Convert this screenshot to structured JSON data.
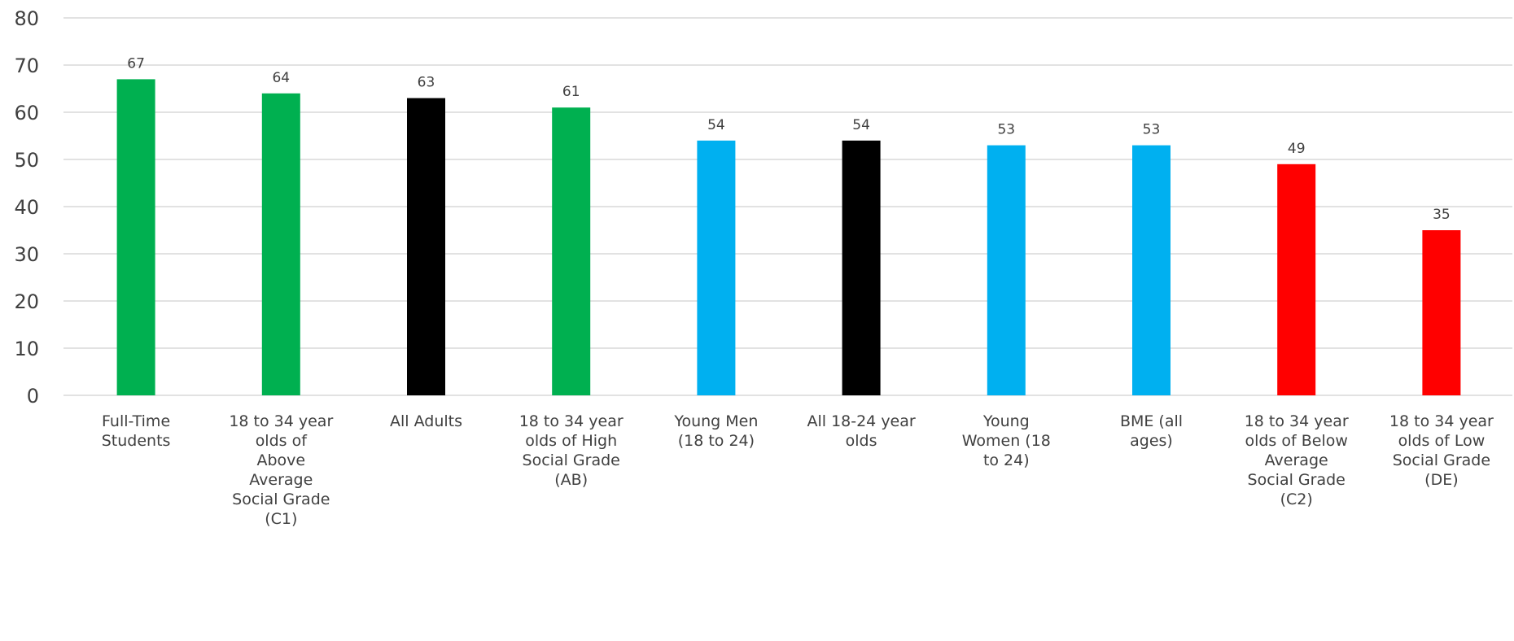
{
  "chart_data": {
    "type": "bar",
    "title": "",
    "xlabel": "",
    "ylabel": "",
    "ylim": [
      0,
      80
    ],
    "yticks": [
      0,
      10,
      20,
      30,
      40,
      50,
      60,
      70,
      80
    ],
    "grid": true,
    "legend": "none",
    "data_labels": true,
    "categories": [
      "Full-Time Students",
      "18 to 34 year olds of Above Average Social Grade (C1)",
      "All Adults",
      "18 to 34 year olds of High Social Grade (AB)",
      "Young Men (18 to 24)",
      "All 18-24 year olds",
      "Young Women (18 to 24)",
      "BME (all ages)",
      "18 to 34 year olds of Below Average Social Grade (C2)",
      "18 to 34 year olds of Low Social Grade (DE)"
    ],
    "category_label_lines": [
      [
        "Full-Time",
        "Students"
      ],
      [
        "18 to 34 year",
        "olds of",
        "Above",
        "Average",
        "Social Grade",
        "(C1)"
      ],
      [
        "All Adults"
      ],
      [
        "18 to 34 year",
        "olds of High",
        "Social Grade",
        "(AB)"
      ],
      [
        "Young Men",
        "(18 to 24)"
      ],
      [
        "All 18-24 year",
        "olds"
      ],
      [
        "Young",
        "Women (18",
        "to 24)"
      ],
      [
        "BME (all",
        "ages)"
      ],
      [
        "18 to 34 year",
        "olds of Below",
        "Average",
        "Social Grade",
        "(C2)"
      ],
      [
        "18 to 34 year",
        "olds of Low",
        "Social Grade",
        "(DE)"
      ]
    ],
    "values": [
      67,
      64,
      63,
      61,
      54,
      54,
      53,
      53,
      49,
      35
    ],
    "colors": [
      "#00b050",
      "#00b050",
      "#000000",
      "#00b050",
      "#00b0f0",
      "#000000",
      "#00b0f0",
      "#00b0f0",
      "#ff0000",
      "#ff0000"
    ],
    "gridline_color": "#d9d9d9",
    "text_color": "#404040"
  }
}
